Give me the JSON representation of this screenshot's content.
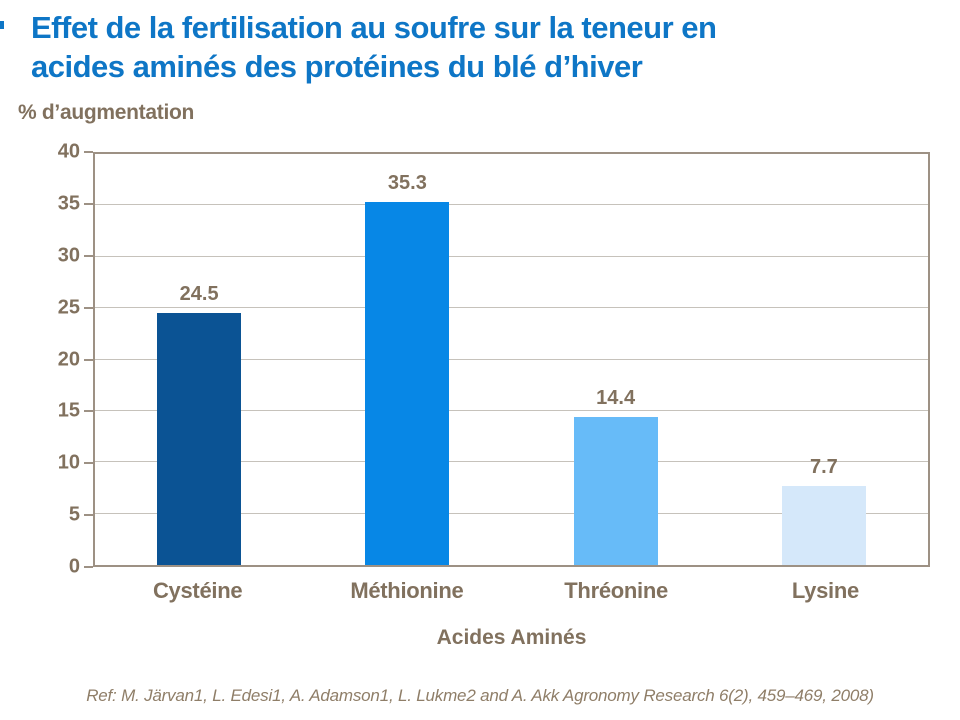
{
  "slide": {
    "title_lines": [
      "Effet de la fertilisation au soufre sur la teneur en",
      "acides aminés des protéines du blé d’hiver"
    ],
    "footer": "Ref: M. Järvan1, L. Edesi1, A. Adamson1, L. Lukme2 and A. Akk Agronomy Research 6(2), 459–469, 2008)"
  },
  "colors": {
    "title": "#0E76C6",
    "accent_sliver": "#0E76C6",
    "axis_text": "#81715E",
    "footer_text": "#8F7E68",
    "frame": "#9D9184",
    "gridline": "#C6C2BB",
    "background": "#FFFFFF"
  },
  "chart_data": {
    "type": "bar",
    "title": "Effet de la fertilisation au soufre sur la teneur en acides aminés des protéines du blé d’hiver",
    "ylabel": "% d’augmentation",
    "xlabel": "Acides Aminés",
    "categories": [
      "Cystéine",
      "Méthionine",
      "Thréonine",
      "Lysine"
    ],
    "values": [
      24.5,
      35.3,
      14.4,
      7.7
    ],
    "data_labels": [
      "24.5",
      "35.3",
      "14.4",
      "7.7"
    ],
    "bar_colors": [
      "#0B5394",
      "#0787E6",
      "#67BBF8",
      "#D5E8FA"
    ],
    "ylim": [
      0,
      40
    ],
    "ytick_step": 5,
    "yticks": [
      0,
      5,
      10,
      15,
      20,
      25,
      30,
      35,
      40
    ],
    "grid": true,
    "legend": "none"
  }
}
